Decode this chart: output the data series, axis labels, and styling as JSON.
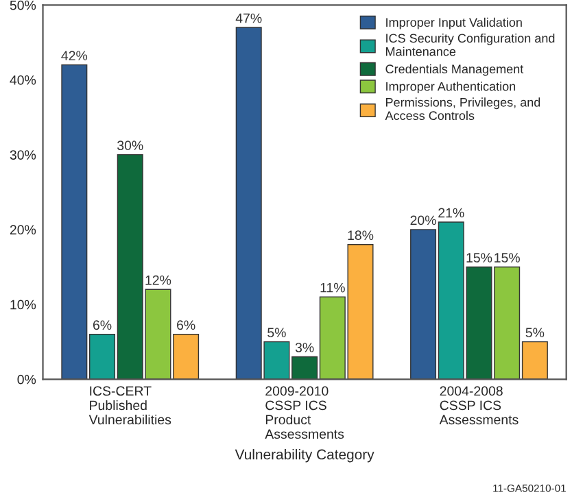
{
  "chart_data": {
    "type": "bar",
    "xlabel": "Vulnerability Category",
    "categories": [
      "ICS-CERT\nPublished\nVulnerabilities",
      "2009-2010\nCSSP ICS\nProduct\nAssessments",
      "2004-2008\nCSSP ICS\nAssessments"
    ],
    "series": [
      {
        "name": "Improper Input Validation",
        "color": "#2e5d94",
        "values": [
          42,
          47,
          20
        ],
        "value_labels": [
          "42%",
          "47%",
          "20%"
        ]
      },
      {
        "name": "ICS Security Configuration and\nMaintenance",
        "color": "#14a090",
        "values": [
          6,
          5,
          21
        ],
        "value_labels": [
          "6%",
          "5%",
          "21%"
        ]
      },
      {
        "name": "Credentials Management",
        "color": "#0f6a3c",
        "values": [
          30,
          3,
          15
        ],
        "value_labels": [
          "30%",
          "3%",
          "15%"
        ]
      },
      {
        "name": "Improper Authentication",
        "color": "#8cc63f",
        "values": [
          12,
          11,
          15
        ],
        "value_labels": [
          "12%",
          "11%",
          "15%"
        ]
      },
      {
        "name": "Permissions, Privileges, and\nAccess Controls",
        "color": "#fbb040",
        "values": [
          6,
          18,
          5
        ],
        "value_labels": [
          "6%",
          "18%",
          "5%"
        ]
      }
    ],
    "ylim": [
      0,
      50
    ],
    "yticks": [
      {
        "value": 0,
        "label": "0%"
      },
      {
        "value": 10,
        "label": "10%"
      },
      {
        "value": 20,
        "label": "20%"
      },
      {
        "value": 30,
        "label": "30%"
      },
      {
        "value": 40,
        "label": "40%"
      },
      {
        "value": 50,
        "label": "50%"
      }
    ],
    "legend": "top right",
    "grid": false,
    "annotations": [
      "11-GA50210-01"
    ]
  }
}
